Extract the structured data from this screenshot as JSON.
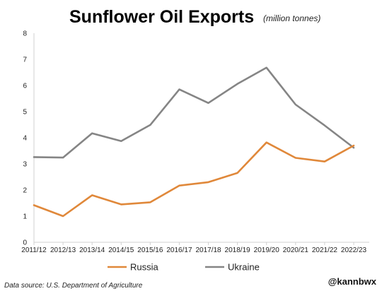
{
  "chart_data": {
    "type": "line",
    "title": "Sunflower Oil Exports",
    "subtitle": "(million tonnes)",
    "categories": [
      "2011/12",
      "2012/13",
      "2013/14",
      "2014/15",
      "2015/16",
      "2016/17",
      "2017/18",
      "2018/19",
      "2019/20",
      "2020/21",
      "2021/22",
      "2022/23"
    ],
    "series": [
      {
        "name": "Russia",
        "color": "#E0883A",
        "values": [
          1.42,
          1.0,
          1.8,
          1.45,
          1.53,
          2.17,
          2.3,
          2.65,
          3.82,
          3.23,
          3.09,
          3.7
        ]
      },
      {
        "name": "Ukraine",
        "color": "#858585",
        "values": [
          3.26,
          3.24,
          4.17,
          3.87,
          4.49,
          5.85,
          5.33,
          6.06,
          6.68,
          5.27,
          4.47,
          3.62
        ]
      }
    ],
    "ylim": [
      0,
      8
    ],
    "yticks": [
      "0",
      "1",
      "2",
      "3",
      "4",
      "5",
      "6",
      "7",
      "8"
    ],
    "grid": false,
    "legend_position": "bottom"
  },
  "footer": {
    "source": "Data source: U.S. Department of Agriculture",
    "handle": "@kannbwx"
  }
}
